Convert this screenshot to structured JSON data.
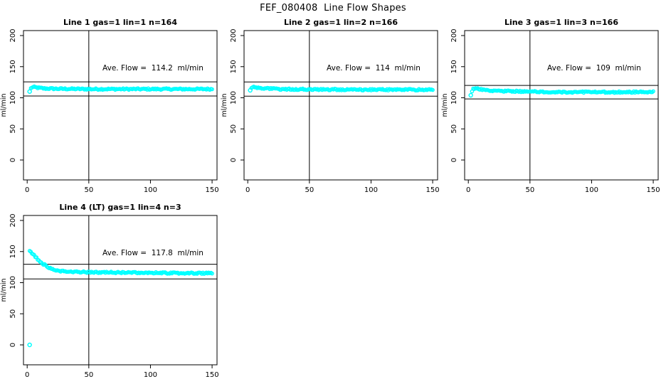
{
  "title": "FEF_080408  Line Flow Shapes",
  "colors": {
    "points": "#00FFFF",
    "axis": "#000000",
    "background": "#FFFFFF",
    "text": "#000000"
  },
  "axes": {
    "x_ticks": [
      0,
      50,
      100,
      150
    ],
    "y_ticks": [
      0,
      50,
      100,
      150,
      200
    ],
    "y_label": "ml/min",
    "x_label": "",
    "x_range": [
      -3,
      154
    ],
    "y_range": [
      -32,
      208
    ],
    "vline_x": 50,
    "grid": "off",
    "legend": "none"
  },
  "chart_data": {
    "type": "scatter",
    "xlabel": "",
    "ylabel": "ml/min",
    "xlim": [
      0,
      150
    ],
    "ylim": [
      0,
      200
    ],
    "panels": [
      {
        "title": "Line 1 gas=1 lin=1 n=164",
        "n": 164,
        "ave_flow": 114.2,
        "ave_flow_label": "Ave. Flow =  114.2  ml/min",
        "band_upper": 125.6,
        "band_lower": 102.8,
        "profile": [
          [
            3,
            115
          ],
          [
            4,
            117
          ],
          [
            6,
            117
          ],
          [
            9,
            116
          ],
          [
            14,
            115
          ],
          [
            25,
            114.5
          ],
          [
            50,
            114
          ],
          [
            100,
            114
          ],
          [
            150,
            114
          ]
        ],
        "outliers": [
          [
            2,
            110
          ]
        ]
      },
      {
        "title": "Line 2 gas=1 lin=2 n=166",
        "n": 166,
        "ave_flow": 114,
        "ave_flow_label": "Ave. Flow =  114  ml/min",
        "band_upper": 125.4,
        "band_lower": 102.6,
        "profile": [
          [
            3,
            116
          ],
          [
            4,
            118
          ],
          [
            6,
            117
          ],
          [
            9,
            116
          ],
          [
            14,
            115
          ],
          [
            25,
            114
          ],
          [
            50,
            113.5
          ],
          [
            100,
            113
          ],
          [
            150,
            113
          ]
        ],
        "outliers": [
          [
            2,
            112
          ]
        ]
      },
      {
        "title": "Line 3 gas=1 lin=3 n=166",
        "n": 166,
        "ave_flow": 109,
        "ave_flow_label": "Ave. Flow =  109  ml/min",
        "band_upper": 119.9,
        "band_lower": 98.1,
        "profile": [
          [
            3,
            111
          ],
          [
            4,
            114
          ],
          [
            6,
            115
          ],
          [
            9,
            114
          ],
          [
            14,
            112
          ],
          [
            25,
            111
          ],
          [
            50,
            110
          ],
          [
            90,
            109
          ],
          [
            130,
            109
          ],
          [
            150,
            109.5
          ]
        ],
        "outliers": [
          [
            2,
            104
          ]
        ]
      },
      {
        "title": "Line 4 (LT) gas=1 lin=4 n=3",
        "n": 3,
        "ave_flow": 117.8,
        "ave_flow_label": "Ave. Flow =  117.8  ml/min",
        "band_upper": 129.6,
        "band_lower": 106.0,
        "profile": [
          [
            2,
            150
          ],
          [
            3,
            149
          ],
          [
            5,
            145
          ],
          [
            7,
            141
          ],
          [
            10,
            135
          ],
          [
            13,
            130
          ],
          [
            17,
            125
          ],
          [
            22,
            121
          ],
          [
            28,
            118.5
          ],
          [
            35,
            117.5
          ],
          [
            45,
            117
          ],
          [
            60,
            116.5
          ],
          [
            90,
            116
          ],
          [
            120,
            115.5
          ],
          [
            150,
            115
          ]
        ],
        "outliers": [
          [
            2,
            0
          ]
        ]
      }
    ]
  }
}
